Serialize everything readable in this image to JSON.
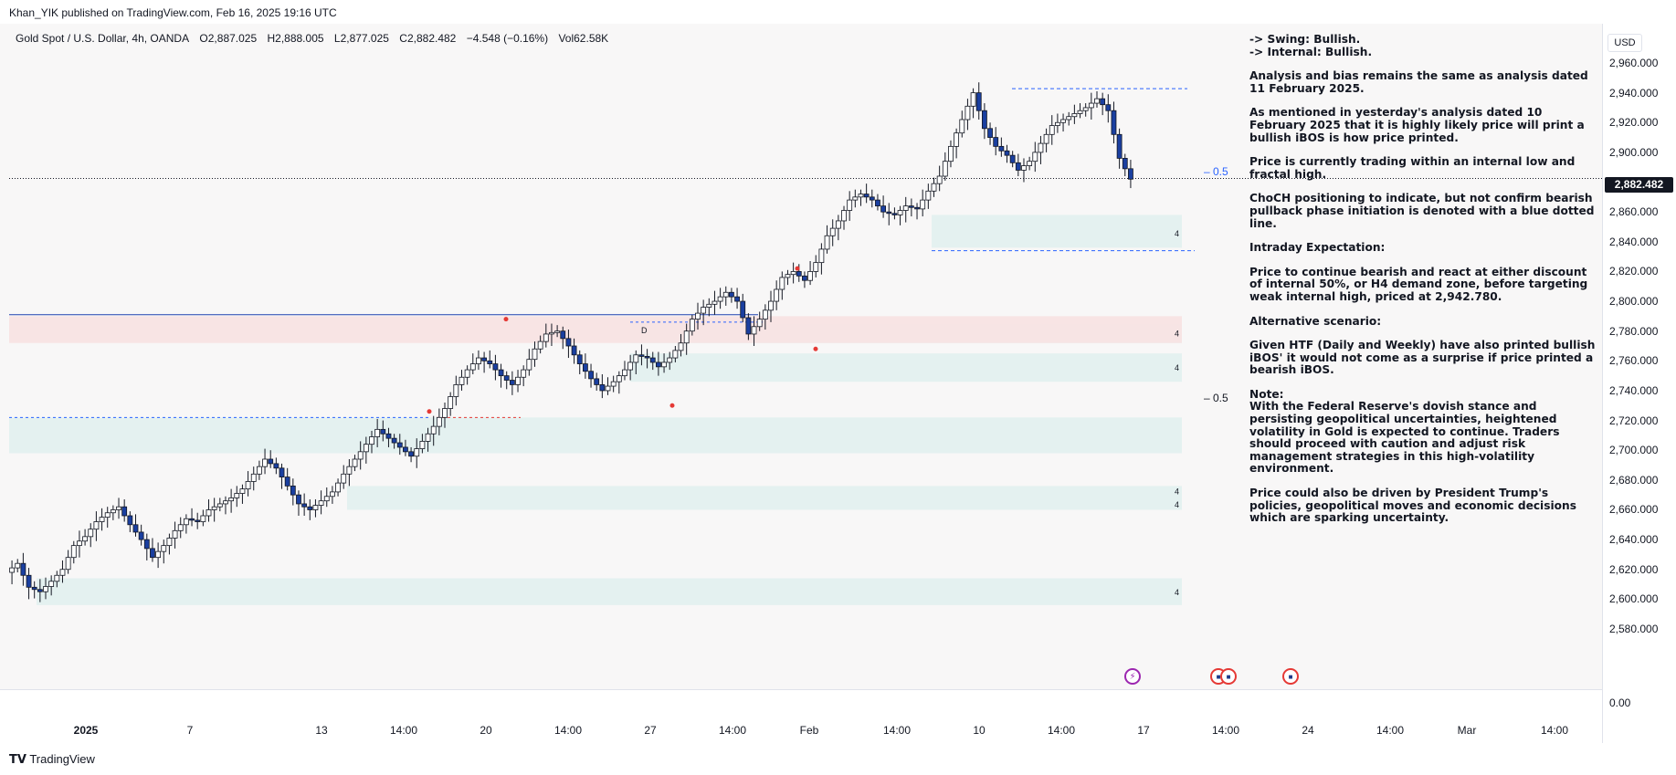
{
  "header": {
    "published": "Khan_YIK published on TradingView.com, Feb 16, 2025 19:16 UTC"
  },
  "symbol": {
    "name": "Gold Spot / U.S. Dollar, 4h, OANDA",
    "open": "O2,887.025",
    "high": "H2,888.005",
    "low": "L2,877.025",
    "close": "C2,882.482",
    "change": "−4.548 (−0.16%)",
    "volume": "Vol62.58K"
  },
  "price_axis": {
    "currency": "USD",
    "labels": [
      "2,960.000",
      "2,940.000",
      "2,920.000",
      "2,900.000",
      "2,860.000",
      "2,840.000",
      "2,820.000",
      "2,800.000",
      "2,780.000",
      "2,760.000",
      "2,740.000",
      "2,720.000",
      "2,700.000",
      "2,680.000",
      "2,660.000",
      "2,640.000",
      "2,620.000",
      "2,600.000",
      "2,580.000"
    ],
    "last_price": "2,882.482",
    "volume_zero": "0.00"
  },
  "time_axis": {
    "labels": [
      {
        "text": "2025",
        "bold": true
      },
      {
        "text": "7",
        "bold": false
      },
      {
        "text": "13",
        "bold": false
      },
      {
        "text": "14:00",
        "bold": false
      },
      {
        "text": "20",
        "bold": false
      },
      {
        "text": "14:00",
        "bold": false
      },
      {
        "text": "27",
        "bold": false
      },
      {
        "text": "14:00",
        "bold": false
      },
      {
        "text": "Feb",
        "bold": false
      },
      {
        "text": "14:00",
        "bold": false
      },
      {
        "text": "10",
        "bold": false
      },
      {
        "text": "14:00",
        "bold": false
      },
      {
        "text": "17",
        "bold": false
      },
      {
        "text": "14:00",
        "bold": false
      },
      {
        "text": "24",
        "bold": false
      },
      {
        "text": "14:00",
        "bold": false
      },
      {
        "text": "Mar",
        "bold": false
      },
      {
        "text": "14:00",
        "bold": false
      }
    ]
  },
  "annotations": {
    "fib_half_upper": "– 0.5",
    "fib_half_lower": "– 0.5",
    "zone_label": "4",
    "d_label": "D"
  },
  "notes": [
    "-> Swing:  Bullish.",
    "-> Internal:  Bullish.",
    "Analysis and bias remains the same as analysis dated 11 February 2025.",
    "As mentioned in yesterday's analysis dated 10 February 2025 that it is highly likely price will print a bullish iBOS is how price printed.",
    "Price is currently trading within an internal low and fractal high.",
    "ChoCH positioning to indicate, but not confirm bearish pullback phase initiation is denoted with a blue dotted line.",
    "Intraday Expectation:",
    "Price to continue bearish and react at either discount of internal 50%, or H4 demand zone, before targeting weak internal high, priced at 2,942.780.",
    "Alternative scenario:",
    "Given HTF (Daily and Weekly) have also printed bullish iBOS' it would not come as a surprise if price printed a bearish iBOS.",
    "Note:",
    "With the Federal Reserve's dovish stance and persisting geopolitical uncertainties, heightened volatility in Gold is expected to continue. Traders should proceed with caution and adjust risk management strategies in this high-volatility environment.",
    "Price could also be driven by President Trump's policies, geopolitical moves and economic decisions which are sparking uncertainty."
  ],
  "footer": {
    "brand": "TradingView"
  },
  "colors": {
    "bull_body": "#ffffff",
    "bear_body": "#1a3fa0",
    "demand_zone": "#e3f0ef",
    "supply_zone": "#f8e3e3",
    "dotted_blue": "#2962ff",
    "dotted_red": "#e53935"
  },
  "chart_data": {
    "type": "candlestick",
    "title": "Gold Spot / U.S. Dollar, 4h, OANDA",
    "ylim": [
      2580,
      2960
    ],
    "last_price": 2882.482,
    "swing_low": 2605,
    "weak_internal_high": 2942.78,
    "key_levels": [
      {
        "kind": "demand",
        "low": 2836,
        "high": 2858
      },
      {
        "kind": "demand",
        "low": 2772,
        "high": 2785
      },
      {
        "kind": "demand",
        "low": 2746,
        "high": 2765
      },
      {
        "kind": "demand",
        "low": 2698,
        "high": 2722
      },
      {
        "kind": "demand",
        "low": 2660,
        "high": 2676
      },
      {
        "kind": "demand",
        "low": 2596,
        "high": 2614
      },
      {
        "kind": "supply",
        "low": 2772,
        "high": 2790
      }
    ],
    "path_points": [
      [
        0,
        2618
      ],
      [
        10,
        2624
      ],
      [
        20,
        2608
      ],
      [
        30,
        2605
      ],
      [
        40,
        2612
      ],
      [
        50,
        2620
      ],
      [
        60,
        2636
      ],
      [
        70,
        2642
      ],
      [
        80,
        2652
      ],
      [
        90,
        2658
      ],
      [
        100,
        2662
      ],
      [
        110,
        2650
      ],
      [
        120,
        2640
      ],
      [
        130,
        2628
      ],
      [
        140,
        2636
      ],
      [
        150,
        2646
      ],
      [
        160,
        2654
      ],
      [
        170,
        2652
      ],
      [
        180,
        2660
      ],
      [
        190,
        2664
      ],
      [
        200,
        2668
      ],
      [
        210,
        2674
      ],
      [
        220,
        2684
      ],
      [
        230,
        2694
      ],
      [
        240,
        2688
      ],
      [
        250,
        2676
      ],
      [
        260,
        2664
      ],
      [
        270,
        2660
      ],
      [
        280,
        2666
      ],
      [
        290,
        2672
      ],
      [
        300,
        2684
      ],
      [
        310,
        2694
      ],
      [
        320,
        2704
      ],
      [
        330,
        2714
      ],
      [
        340,
        2708
      ],
      [
        350,
        2702
      ],
      [
        360,
        2696
      ],
      [
        370,
        2706
      ],
      [
        380,
        2716
      ],
      [
        390,
        2728
      ],
      [
        400,
        2744
      ],
      [
        410,
        2754
      ],
      [
        420,
        2762
      ],
      [
        430,
        2758
      ],
      [
        440,
        2750
      ],
      [
        450,
        2744
      ],
      [
        460,
        2754
      ],
      [
        470,
        2768
      ],
      [
        480,
        2778
      ],
      [
        490,
        2780
      ],
      [
        500,
        2770
      ],
      [
        510,
        2758
      ],
      [
        520,
        2748
      ],
      [
        530,
        2740
      ],
      [
        540,
        2746
      ],
      [
        550,
        2754
      ],
      [
        560,
        2764
      ],
      [
        570,
        2762
      ],
      [
        580,
        2756
      ],
      [
        590,
        2762
      ],
      [
        600,
        2772
      ],
      [
        610,
        2788
      ],
      [
        620,
        2796
      ],
      [
        630,
        2800
      ],
      [
        640,
        2806
      ],
      [
        650,
        2800
      ],
      [
        660,
        2778
      ],
      [
        670,
        2788
      ],
      [
        680,
        2800
      ],
      [
        690,
        2816
      ],
      [
        700,
        2820
      ],
      [
        710,
        2814
      ],
      [
        720,
        2826
      ],
      [
        730,
        2844
      ],
      [
        740,
        2854
      ],
      [
        750,
        2868
      ],
      [
        760,
        2872
      ],
      [
        770,
        2868
      ],
      [
        780,
        2860
      ],
      [
        790,
        2858
      ],
      [
        800,
        2864
      ],
      [
        810,
        2862
      ],
      [
        820,
        2874
      ],
      [
        830,
        2884
      ],
      [
        840,
        2904
      ],
      [
        850,
        2922
      ],
      [
        860,
        2940
      ],
      [
        870,
        2916
      ],
      [
        880,
        2904
      ],
      [
        890,
        2898
      ],
      [
        900,
        2888
      ],
      [
        910,
        2894
      ],
      [
        920,
        2906
      ],
      [
        930,
        2918
      ],
      [
        940,
        2922
      ],
      [
        950,
        2926
      ],
      [
        960,
        2930
      ],
      [
        970,
        2936
      ],
      [
        980,
        2928
      ],
      [
        990,
        2896
      ],
      [
        1000,
        2882
      ]
    ]
  }
}
